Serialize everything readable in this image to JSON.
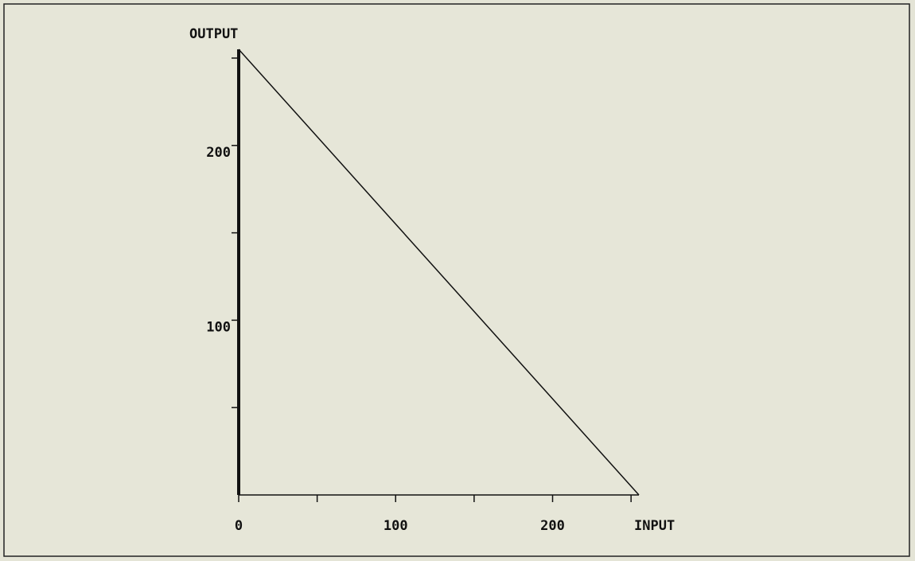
{
  "chart_data": {
    "type": "line",
    "x_label": "INPUT",
    "y_label": "OUTPUT",
    "x": [
      0,
      255
    ],
    "series": [
      {
        "color": "#111111",
        "values": [
          255,
          0
        ]
      }
    ],
    "xlim": [
      0,
      255
    ],
    "ylim": [
      0,
      255
    ],
    "xticks": [
      0,
      100,
      200
    ],
    "yticks": [
      100,
      200
    ],
    "x_minor_ticks": [
      50,
      150,
      250
    ],
    "y_minor_ticks": [
      50,
      150,
      250
    ],
    "grid": false
  }
}
